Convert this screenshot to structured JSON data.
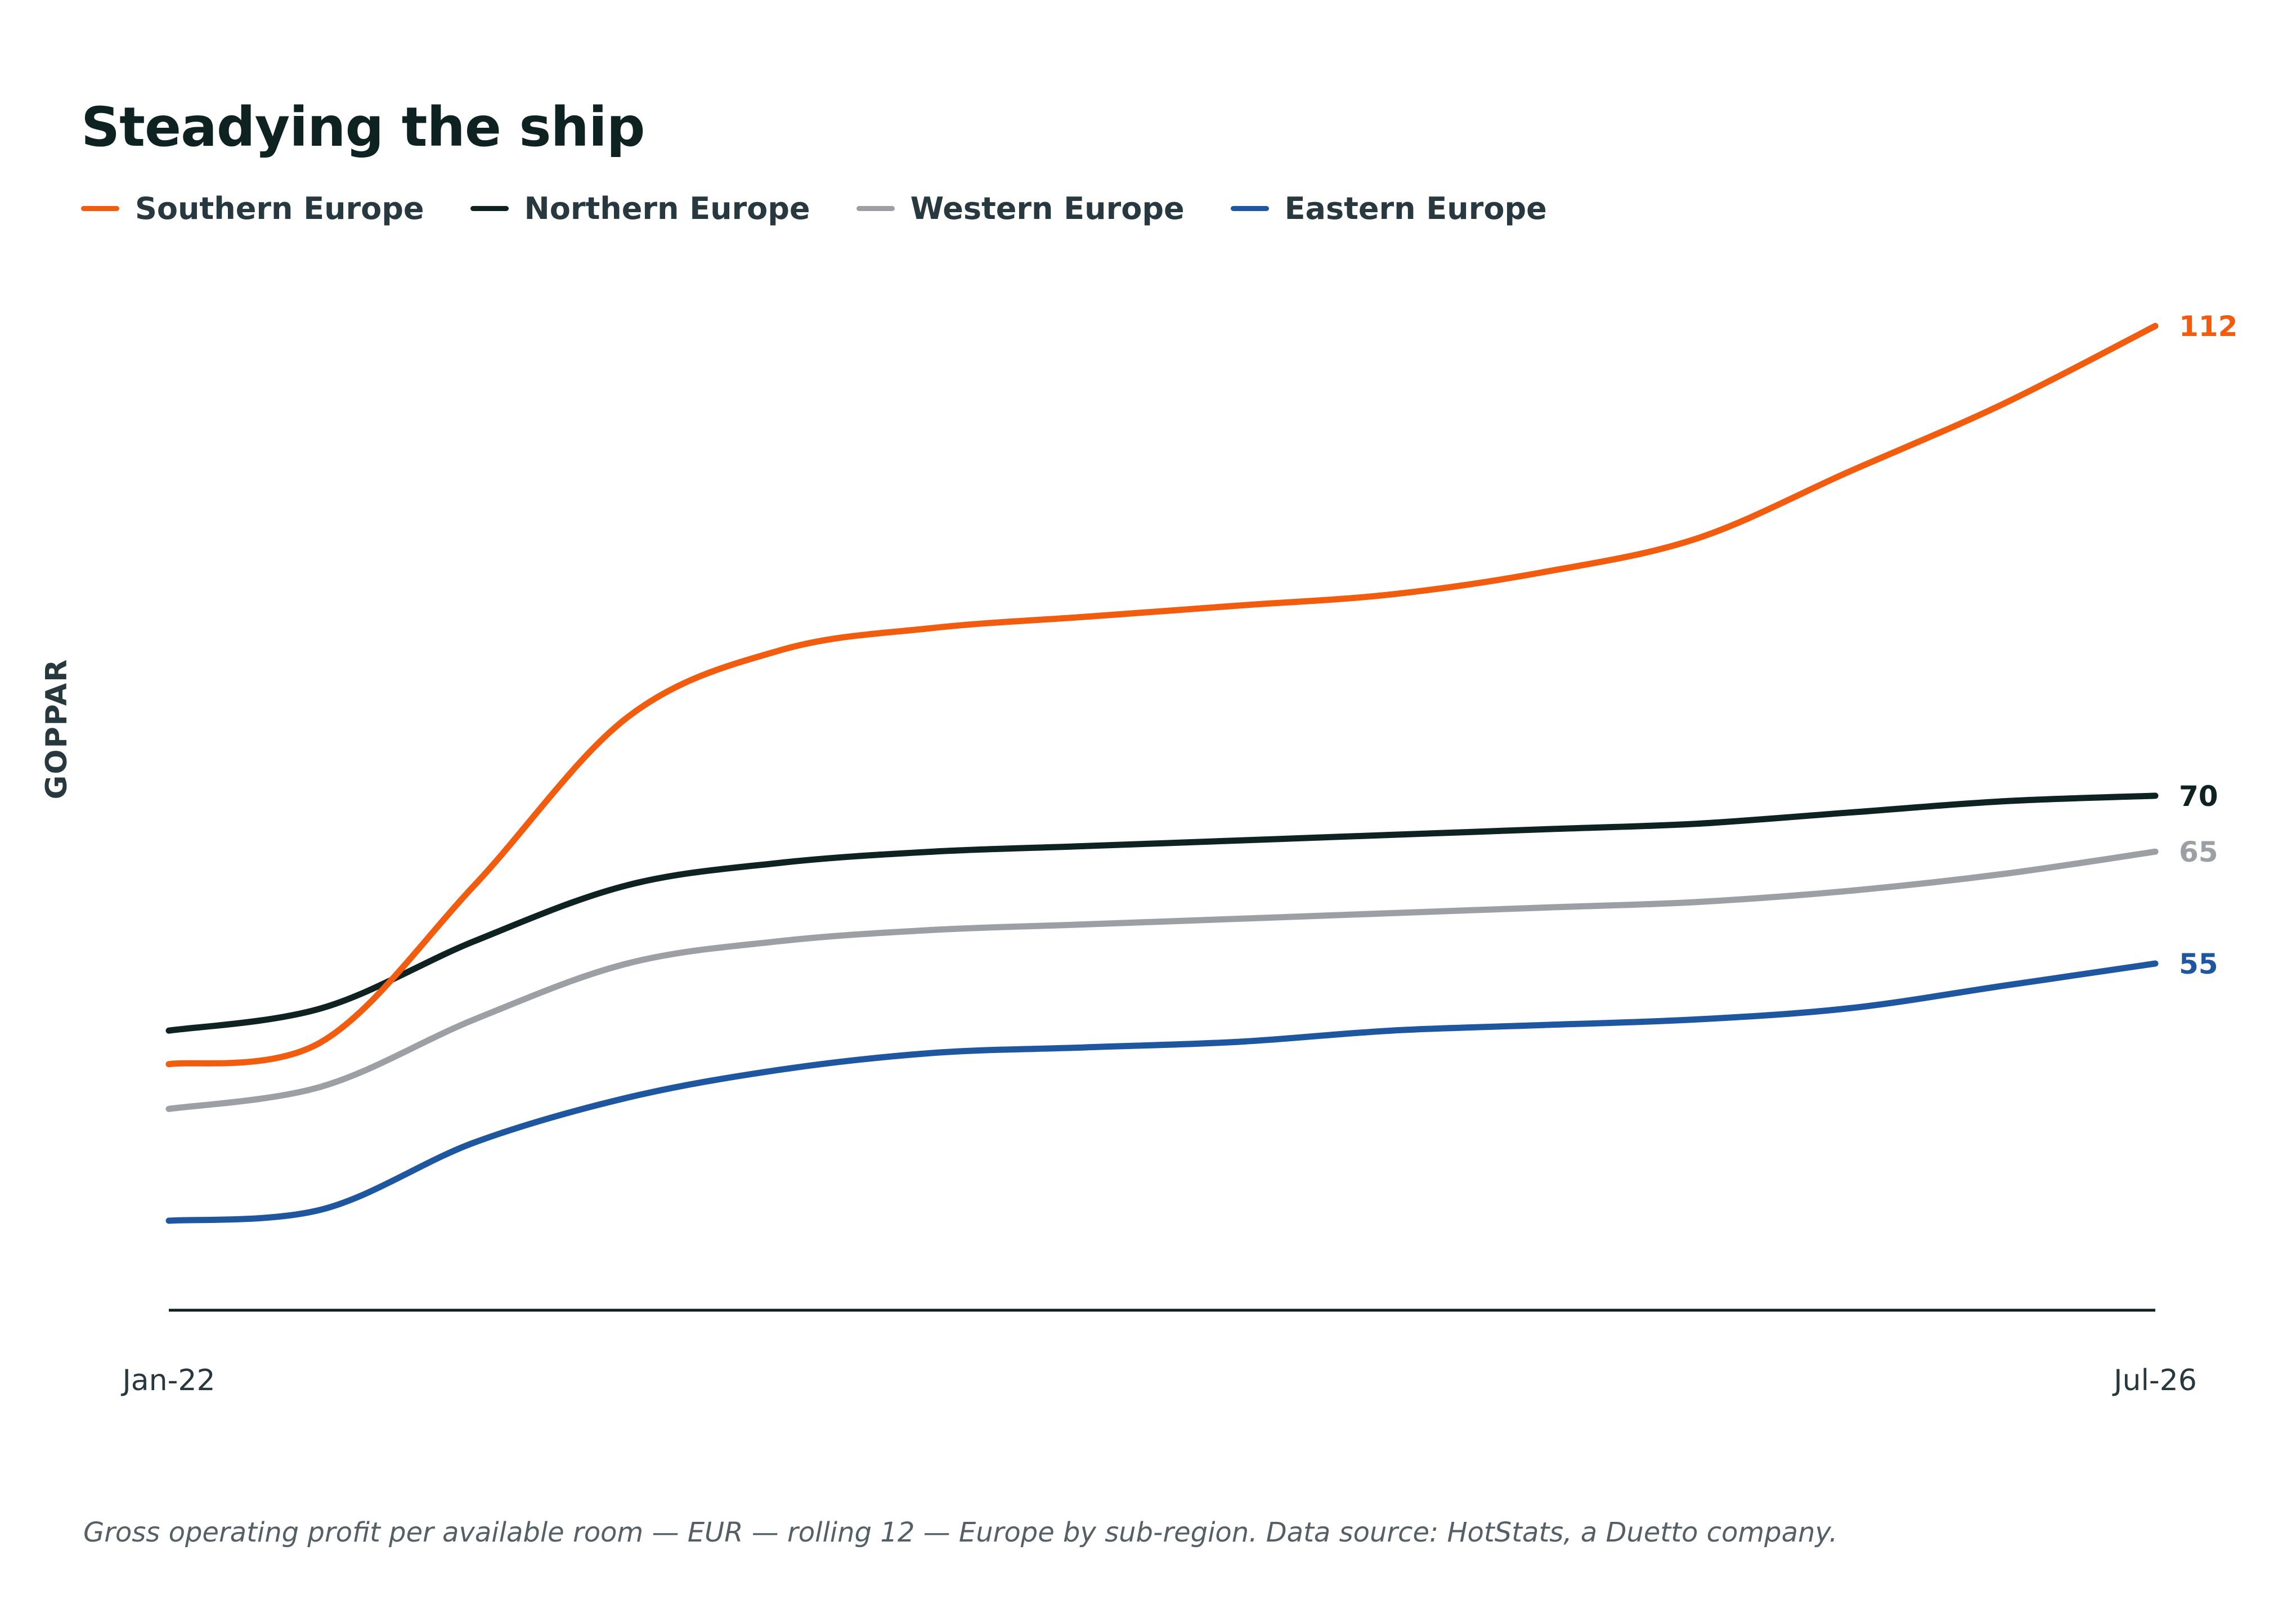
{
  "chart_data": {
    "type": "line",
    "title": "Steadying the ship",
    "subtitle": "",
    "xlabel": "",
    "ylabel": "GOPPAR",
    "x_ticks": [
      "Jan-22",
      "Jul-26"
    ],
    "x_range": [
      "Jan-22",
      "Jul-26"
    ],
    "ylim": [
      24,
      118
    ],
    "grid": false,
    "legend_position": "top-left",
    "series": [
      {
        "name": "Southern Europe",
        "color": "#f25c0f",
        "end_label": "112",
        "values": [
          46,
          48,
          62,
          77,
          83,
          85,
          86,
          87,
          88,
          90,
          93,
          99,
          105,
          112
        ]
      },
      {
        "name": "Northern Europe",
        "color": "#0f2222",
        "end_label": "70",
        "values": [
          49,
          51,
          57,
          62,
          64,
          65,
          65.5,
          66,
          66.5,
          67,
          67.5,
          68.5,
          69.5,
          70
        ]
      },
      {
        "name": "Western Europe",
        "color": "#9ca0a4",
        "end_label": "65",
        "values": [
          42,
          44,
          50,
          55,
          57,
          58,
          58.5,
          59,
          59.5,
          60,
          60.5,
          61.5,
          63,
          65
        ]
      },
      {
        "name": "Eastern Europe",
        "color": "#1e56a0",
        "end_label": "55",
        "values": [
          32,
          33,
          39,
          43,
          45.5,
          47,
          47.5,
          48,
          49,
          49.5,
          50,
          51,
          53,
          55
        ]
      }
    ]
  },
  "footnote": "Gross operating profit per available room — EUR — rolling 12 — Europe by sub-region. Data source: HotStats, a Duetto company."
}
